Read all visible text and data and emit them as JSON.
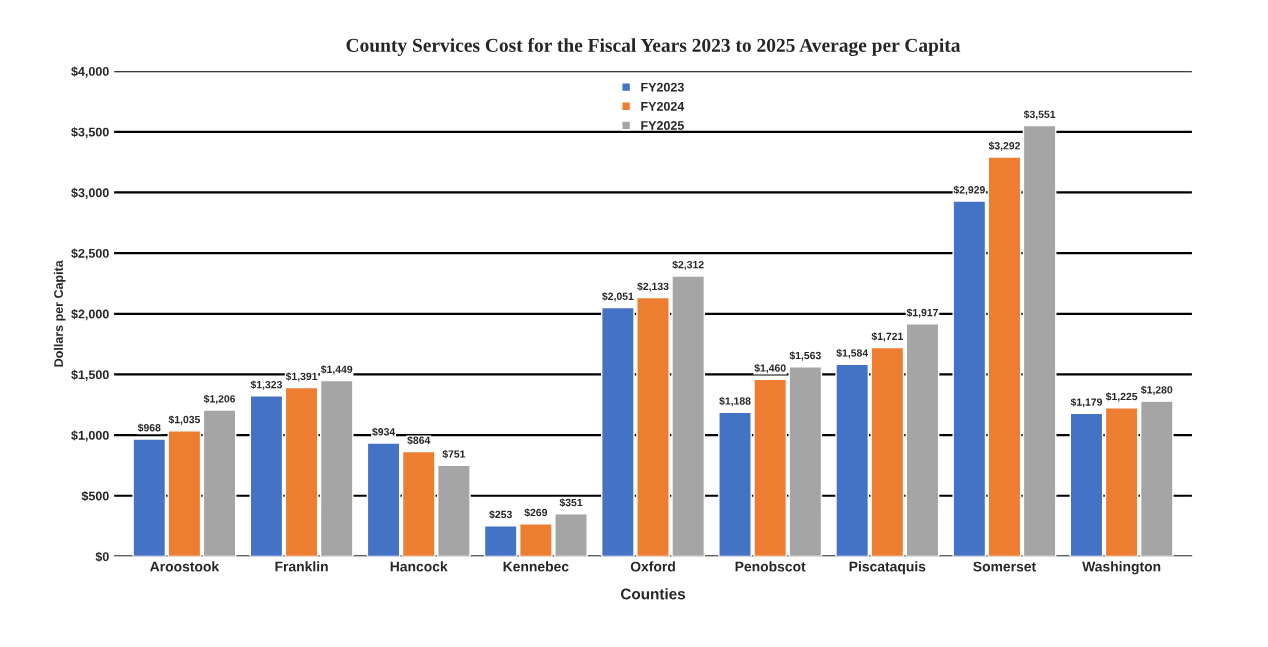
{
  "chart_data": {
    "type": "bar",
    "title": "County Services Cost for the Fiscal Years 2023 to 2025 Average per Capita",
    "xlabel": "Counties",
    "ylabel": "Dollars per Capita",
    "categories": [
      "Aroostook",
      "Franklin",
      "Hancock",
      "Kennebec",
      "Oxford",
      "Penobscot",
      "Piscataquis",
      "Somerset",
      "Washington"
    ],
    "series": [
      {
        "name": "FY2023",
        "color": "#4472c4",
        "values": [
          968,
          1323,
          934,
          253,
          2051,
          1188,
          1584,
          2929,
          1179
        ],
        "value_labels": [
          "$968",
          "$1,323",
          "$934",
          "$253",
          "$2,051",
          "$1,188",
          "$1,584",
          "$2,929",
          "$1,179"
        ]
      },
      {
        "name": "FY2024",
        "color": "#ed7d31",
        "values": [
          1035,
          1391,
          864,
          269,
          2133,
          1460,
          1721,
          3292,
          1225
        ],
        "value_labels": [
          "$1,035",
          "$1,391",
          "$864",
          "$269",
          "$2,133",
          "$1,460",
          "$1,721",
          "$3,292",
          "$1,225"
        ]
      },
      {
        "name": "FY2025",
        "color": "#a5a5a5",
        "values": [
          1206,
          1449,
          751,
          351,
          2312,
          1563,
          1917,
          3551,
          1280
        ],
        "value_labels": [
          "$1,206",
          "$1,449",
          "$751",
          "$351",
          "$2,312",
          "$1,563",
          "$1,917",
          "$3,551",
          "$1,280"
        ]
      }
    ],
    "ylim": [
      0,
      4000
    ],
    "yticks": [
      {
        "value": 0,
        "label": "$0"
      },
      {
        "value": 500,
        "label": "$500"
      },
      {
        "value": 1000,
        "label": "$1,000"
      },
      {
        "value": 1500,
        "label": "$1,500"
      },
      {
        "value": 2000,
        "label": "$2,000"
      },
      {
        "value": 2500,
        "label": "$2,500"
      },
      {
        "value": 3000,
        "label": "$3,000"
      },
      {
        "value": 3500,
        "label": "$3,500"
      },
      {
        "value": 4000,
        "label": "$4,000"
      }
    ],
    "grid": "y",
    "legend": "top"
  }
}
